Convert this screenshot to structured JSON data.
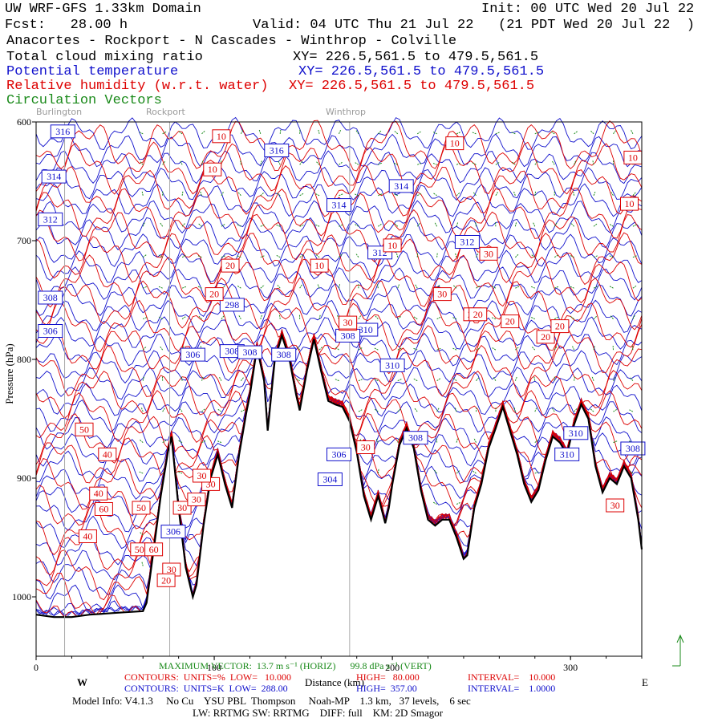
{
  "header": {
    "line1_left": "UW WRF-GFS 1.33km Domain",
    "line1_right": "Init: 00 UTC Wed 20 Jul 22",
    "line2_left": "Fcst:   28.00 h",
    "line2_right": "Valid: 04 UTC Thu 21 Jul 22   (21 PDT Wed 20 Jul 22  )",
    "route": "Anacortes - Rockport - N Cascades - Winthrop - Colville"
  },
  "fields": [
    {
      "name": "Total cloud mixing ratio",
      "xy": "XY= 226.5,561.5 to 479.5,561.5",
      "color": "#000000"
    },
    {
      "name": "Potential temperature",
      "xy": "XY= 226.5,561.5 to 479.5,561.5",
      "color": "#1010cc"
    },
    {
      "name": "Relative humidity (w.r.t. water)",
      "xy": "XY= 226.5,561.5 to 479.5,561.5",
      "color": "#dd0000"
    },
    {
      "name": "Circulation Vectors",
      "xy": "",
      "color": "#1a8a1a"
    }
  ],
  "places": [
    {
      "name": "Burlington",
      "x_km": 16
    },
    {
      "name": "Rockport",
      "x_km": 75
    },
    {
      "name": "Winthrop",
      "x_km": 176
    }
  ],
  "chart_data": {
    "type": "cross-section",
    "xlim": [
      0,
      340
    ],
    "ylim": [
      1050,
      600
    ],
    "x_ticks": [
      0,
      100,
      200,
      300
    ],
    "y_ticks": [
      600,
      700,
      800,
      900,
      1000
    ],
    "y_tick_labels": [
      "600",
      "700",
      "800",
      "900",
      "1000"
    ],
    "xlabel": "Distance (km)",
    "ylabel": "Pressure (hPa)",
    "west_label": "W",
    "east_label": "E",
    "terrain_surface_hpa": [
      [
        0,
        1015
      ],
      [
        10,
        1017
      ],
      [
        20,
        1017
      ],
      [
        30,
        1015
      ],
      [
        40,
        1014
      ],
      [
        50,
        1013
      ],
      [
        60,
        1012
      ],
      [
        62,
        1005
      ],
      [
        66,
        960
      ],
      [
        70,
        915
      ],
      [
        74,
        878
      ],
      [
        76,
        865
      ],
      [
        80,
        925
      ],
      [
        84,
        975
      ],
      [
        88,
        1000
      ],
      [
        90,
        990
      ],
      [
        94,
        940
      ],
      [
        98,
        900
      ],
      [
        102,
        880
      ],
      [
        106,
        905
      ],
      [
        110,
        925
      ],
      [
        114,
        880
      ],
      [
        118,
        845
      ],
      [
        120,
        830
      ],
      [
        124,
        790
      ],
      [
        128,
        818
      ],
      [
        130,
        860
      ],
      [
        134,
        800
      ],
      [
        138,
        780
      ],
      [
        142,
        798
      ],
      [
        146,
        830
      ],
      [
        148,
        843
      ],
      [
        152,
        810
      ],
      [
        156,
        783
      ],
      [
        160,
        810
      ],
      [
        164,
        835
      ],
      [
        168,
        838
      ],
      [
        172,
        840
      ],
      [
        176,
        852
      ],
      [
        180,
        878
      ],
      [
        184,
        915
      ],
      [
        188,
        935
      ],
      [
        192,
        915
      ],
      [
        196,
        938
      ],
      [
        198,
        925
      ],
      [
        200,
        905
      ],
      [
        204,
        872
      ],
      [
        208,
        858
      ],
      [
        212,
        875
      ],
      [
        216,
        910
      ],
      [
        220,
        935
      ],
      [
        224,
        940
      ],
      [
        228,
        935
      ],
      [
        232,
        935
      ],
      [
        236,
        950
      ],
      [
        240,
        968
      ],
      [
        242,
        965
      ],
      [
        246,
        925
      ],
      [
        250,
        905
      ],
      [
        254,
        875
      ],
      [
        258,
        858
      ],
      [
        262,
        840
      ],
      [
        266,
        860
      ],
      [
        270,
        880
      ],
      [
        274,
        905
      ],
      [
        278,
        920
      ],
      [
        282,
        910
      ],
      [
        286,
        885
      ],
      [
        290,
        865
      ],
      [
        294,
        870
      ],
      [
        298,
        880
      ],
      [
        302,
        855
      ],
      [
        306,
        838
      ],
      [
        310,
        850
      ],
      [
        314,
        890
      ],
      [
        318,
        912
      ],
      [
        322,
        900
      ],
      [
        326,
        905
      ],
      [
        330,
        890
      ],
      [
        334,
        900
      ],
      [
        338,
        935
      ],
      [
        340,
        960
      ]
    ],
    "potential_temperature_labels_K": [
      "316",
      "314",
      "312",
      "308",
      "306",
      "316",
      "314",
      "314",
      "312",
      "312",
      "310",
      "310",
      "308",
      "308",
      "306",
      "306",
      "308",
      "304",
      "298",
      "310",
      "308",
      "310",
      "306",
      "308",
      "308"
    ],
    "relative_humidity_labels_pct": [
      "10",
      "10",
      "10",
      "10",
      "10",
      "10",
      "10",
      "20",
      "20",
      "20",
      "20",
      "20",
      "20",
      "20",
      "30",
      "30",
      "30",
      "30",
      "30",
      "30",
      "30",
      "30",
      "40",
      "40",
      "40",
      "50",
      "50",
      "50",
      "60",
      "60",
      "30",
      "20",
      "30",
      "20"
    ],
    "vector_scale": {
      "label": "MAXIMUM VECTOR:",
      "horiz": "13.7 m s⁻¹ (HORIZ)",
      "vert": "99.8 dPa s⁻¹ (VERT)"
    },
    "contour_info": [
      {
        "label": "CONTOURS:  UNITS=%  LOW=   10.000",
        "high": "HIGH=   80.000",
        "interval": "INTERVAL=    10.000",
        "color": "#dd0000"
      },
      {
        "label": "CONTOURS:  UNITS=K  LOW=  288.00",
        "high": "HIGH=  357.00",
        "interval": "INTERVAL=    1.0000",
        "color": "#1010cc"
      }
    ],
    "model_info": "Model Info: V4.1.3     No Cu    YSU PBL  Thompson     Noah-MP    1.3 km,   37 levels,    6 sec",
    "model_info2": "LW: RRTMG SW: RRTMG    DIFF: full    KM: 2D Smagor"
  }
}
